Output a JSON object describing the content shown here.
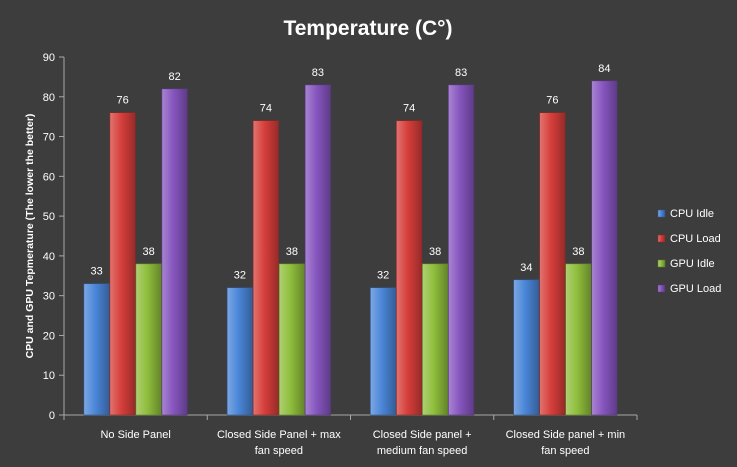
{
  "chart_data": {
    "type": "bar",
    "title": "Temperature (C°)",
    "ylabel": "CPU and GPU Tepmerature (The lower the better)",
    "xlabel": "",
    "ylim": [
      0,
      90
    ],
    "yticks": [
      0,
      10,
      20,
      30,
      40,
      50,
      60,
      70,
      80,
      90
    ],
    "grid": false,
    "legend_position": "right",
    "categories": [
      [
        "No Side Panel"
      ],
      [
        "Closed Side Panel + max",
        "fan speed"
      ],
      [
        "Closed Side panel +",
        "medium fan speed"
      ],
      [
        "Closed Side panel + min",
        "fan speed"
      ]
    ],
    "series": [
      {
        "name": "CPU Idle",
        "color": "#4a86d8",
        "values": [
          33,
          32,
          32,
          34
        ]
      },
      {
        "name": "CPU Load",
        "color": "#d63e3a",
        "values": [
          76,
          74,
          74,
          76
        ]
      },
      {
        "name": "GPU Idle",
        "color": "#8fbe3c",
        "values": [
          38,
          38,
          38,
          38
        ]
      },
      {
        "name": "GPU Load",
        "color": "#8655bf",
        "values": [
          82,
          83,
          83,
          84
        ]
      }
    ]
  },
  "colors": {
    "background": "#3d3d3d",
    "text": "#ffffff",
    "axis": "#a8a8a8"
  }
}
